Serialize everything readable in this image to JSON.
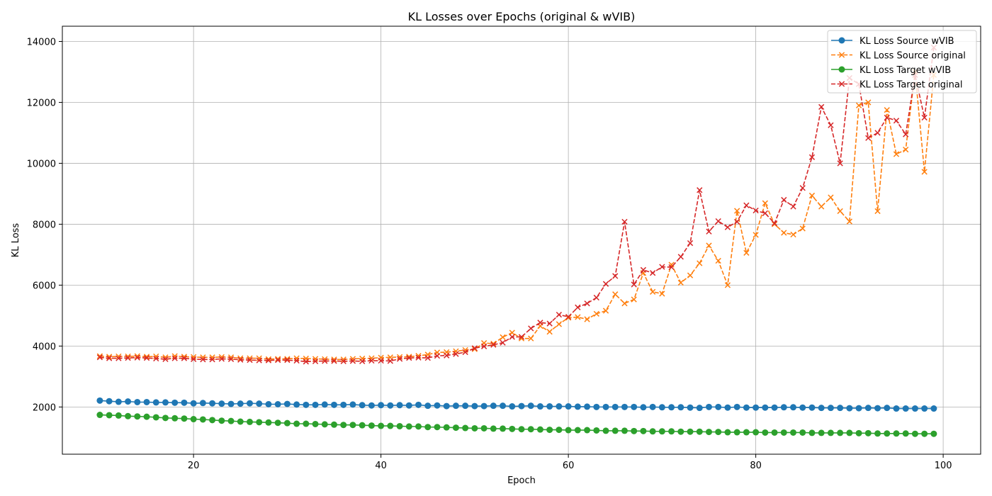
{
  "chart_data": {
    "type": "line",
    "title": "KL Losses over Epochs (original & wVIB)",
    "xlabel": "Epoch",
    "ylabel": "KL Loss",
    "xlim": [
      6,
      104
    ],
    "ylim": [
      450,
      14500
    ],
    "xticks": [
      20,
      40,
      60,
      80,
      100
    ],
    "yticks": [
      2000,
      4000,
      6000,
      8000,
      10000,
      12000,
      14000
    ],
    "grid": true,
    "legend_position": "top-right",
    "x": [
      10,
      11,
      12,
      13,
      14,
      15,
      16,
      17,
      18,
      19,
      20,
      21,
      22,
      23,
      24,
      25,
      26,
      27,
      28,
      29,
      30,
      31,
      32,
      33,
      34,
      35,
      36,
      37,
      38,
      39,
      40,
      41,
      42,
      43,
      44,
      45,
      46,
      47,
      48,
      49,
      50,
      51,
      52,
      53,
      54,
      55,
      56,
      57,
      58,
      59,
      60,
      61,
      62,
      63,
      64,
      65,
      66,
      67,
      68,
      69,
      70,
      71,
      72,
      73,
      74,
      75,
      76,
      77,
      78,
      79,
      80,
      81,
      82,
      83,
      84,
      85,
      86,
      87,
      88,
      89,
      90,
      91,
      92,
      93,
      94,
      95,
      96,
      97,
      98,
      99
    ],
    "series": [
      {
        "name": "KL Loss Source wVIB",
        "color": "#1f77b4",
        "linestyle": "solid",
        "marker": "circle",
        "values": [
          2210,
          2190,
          2170,
          2180,
          2160,
          2160,
          2150,
          2150,
          2140,
          2140,
          2120,
          2130,
          2120,
          2110,
          2100,
          2110,
          2120,
          2110,
          2090,
          2090,
          2100,
          2080,
          2070,
          2070,
          2080,
          2070,
          2070,
          2080,
          2060,
          2050,
          2060,
          2050,
          2060,
          2050,
          2070,
          2040,
          2050,
          2030,
          2040,
          2040,
          2030,
          2030,
          2040,
          2040,
          2020,
          2030,
          2040,
          2020,
          2020,
          2020,
          2020,
          2010,
          2010,
          2000,
          2000,
          2000,
          2000,
          2000,
          1990,
          2000,
          1990,
          1990,
          1990,
          1980,
          1970,
          2000,
          2000,
          1980,
          2000,
          1980,
          1980,
          1980,
          1980,
          1990,
          1990,
          1980,
          1980,
          1970,
          1970,
          1970,
          1960,
          1960,
          1970,
          1960,
          1970,
          1950,
          1950,
          1950,
          1950,
          1950
        ]
      },
      {
        "name": "KL Loss Source original",
        "color": "#ff7f0e",
        "linestyle": "dashed",
        "marker": "x",
        "values": [
          3670,
          3650,
          3660,
          3660,
          3670,
          3650,
          3660,
          3630,
          3670,
          3650,
          3640,
          3630,
          3630,
          3640,
          3630,
          3600,
          3600,
          3600,
          3570,
          3580,
          3580,
          3600,
          3590,
          3580,
          3570,
          3560,
          3560,
          3580,
          3590,
          3600,
          3620,
          3630,
          3640,
          3650,
          3680,
          3720,
          3790,
          3800,
          3830,
          3870,
          3900,
          4100,
          4080,
          4290,
          4440,
          4250,
          4250,
          4660,
          4470,
          4720,
          4930,
          4950,
          4880,
          5060,
          5160,
          5700,
          5400,
          5530,
          6400,
          5780,
          5720,
          6670,
          6080,
          6320,
          6720,
          7300,
          6800,
          6000,
          8440,
          7060,
          7650,
          8690,
          8000,
          7720,
          7660,
          7860,
          8940,
          8580,
          8880,
          8430,
          8090,
          11900,
          12000,
          8430,
          11750,
          10300,
          10450,
          13000,
          9720,
          12900
        ]
      },
      {
        "name": "KL Loss Target wVIB",
        "color": "#2ca02c",
        "linestyle": "solid",
        "marker": "circle",
        "values": [
          1740,
          1730,
          1720,
          1700,
          1690,
          1680,
          1660,
          1640,
          1630,
          1620,
          1600,
          1590,
          1570,
          1550,
          1540,
          1520,
          1510,
          1500,
          1490,
          1480,
          1470,
          1450,
          1450,
          1440,
          1430,
          1420,
          1410,
          1410,
          1400,
          1390,
          1380,
          1380,
          1370,
          1360,
          1360,
          1340,
          1340,
          1330,
          1320,
          1310,
          1300,
          1300,
          1290,
          1290,
          1280,
          1270,
          1270,
          1260,
          1250,
          1250,
          1240,
          1240,
          1240,
          1230,
          1220,
          1220,
          1220,
          1210,
          1210,
          1200,
          1200,
          1200,
          1190,
          1190,
          1190,
          1180,
          1180,
          1170,
          1170,
          1170,
          1170,
          1160,
          1160,
          1160,
          1160,
          1160,
          1150,
          1150,
          1150,
          1150,
          1150,
          1140,
          1140,
          1130,
          1130,
          1130,
          1130,
          1120,
          1120,
          1120
        ]
      },
      {
        "name": "KL Loss Target original",
        "color": "#d62728",
        "linestyle": "dashed",
        "marker": "x",
        "values": [
          3630,
          3600,
          3600,
          3610,
          3620,
          3610,
          3590,
          3570,
          3600,
          3600,
          3570,
          3560,
          3560,
          3580,
          3570,
          3550,
          3540,
          3530,
          3530,
          3540,
          3540,
          3520,
          3490,
          3500,
          3510,
          3510,
          3500,
          3510,
          3500,
          3520,
          3520,
          3510,
          3580,
          3610,
          3620,
          3610,
          3680,
          3690,
          3740,
          3800,
          3930,
          3990,
          4040,
          4110,
          4300,
          4300,
          4580,
          4770,
          4740,
          5030,
          4960,
          5270,
          5400,
          5590,
          6040,
          6300,
          8080,
          6020,
          6500,
          6400,
          6600,
          6590,
          6930,
          7380,
          9120,
          7760,
          8100,
          7900,
          8080,
          8620,
          8450,
          8360,
          8030,
          8800,
          8580,
          9190,
          10200,
          11850,
          11250,
          10000,
          12800,
          12600,
          10830,
          11000,
          11500,
          11400,
          10950,
          12900,
          11500,
          13800
        ]
      }
    ]
  }
}
